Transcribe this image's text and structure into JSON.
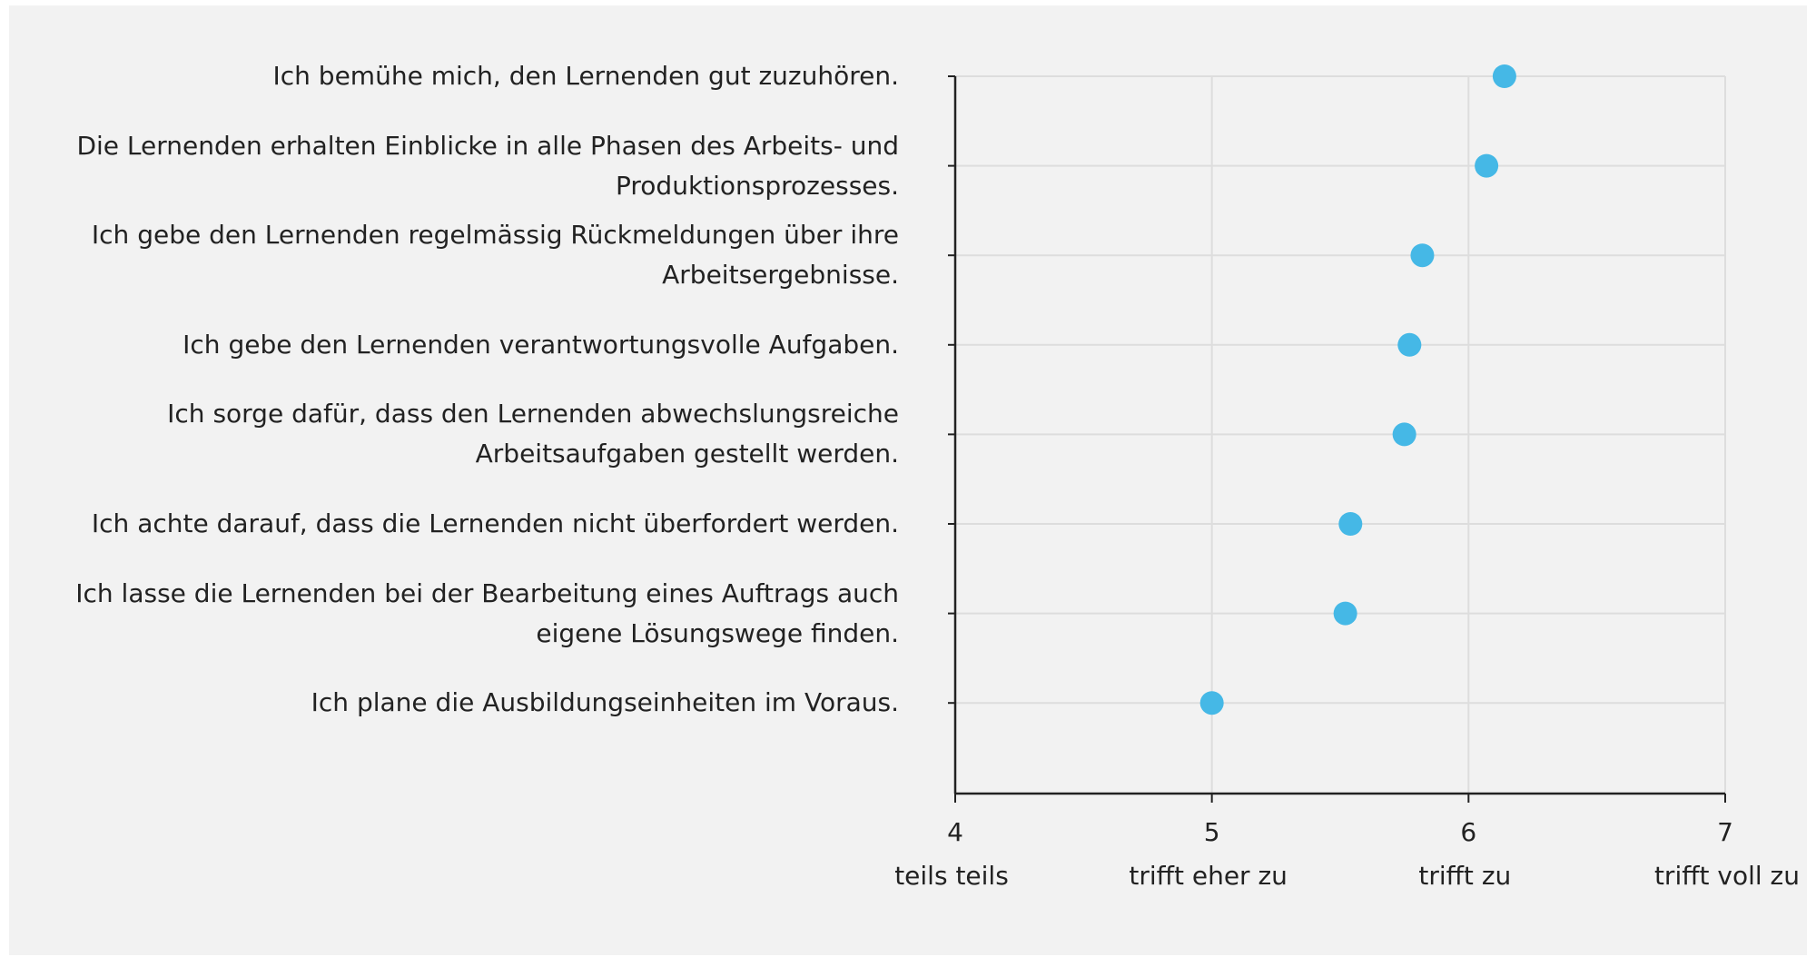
{
  "chart_data": {
    "type": "dot",
    "categories": [
      "Ich bemühe mich, den Lernenden gut zuzuhören.",
      "Die Lernenden erhalten Einblicke in alle Phasen des Arbeits- und\nProduktionsprozesses.",
      "Ich gebe den Lernenden regelmässig Rückmeldungen über ihre\nArbeitsergebnisse.",
      "Ich gebe den Lernenden verantwortungsvolle Aufgaben.",
      "Ich sorge dafür, dass den Lernenden abwechslungsreiche\nArbeitsaufgaben gestellt werden.",
      "Ich achte darauf, dass die Lernenden nicht überfordert werden.",
      "Ich lasse die Lernenden bei der Bearbeitung eines Auftrags auch\neigene Lösungswege finden.",
      "Ich plane die Ausbildungseinheiten im Voraus."
    ],
    "values": [
      6.14,
      6.07,
      5.82,
      5.77,
      5.75,
      5.54,
      5.52,
      5.0
    ],
    "color": "#45b8e6",
    "xlim": [
      4,
      7
    ],
    "xticks": [
      4,
      5,
      6,
      7
    ],
    "xtick_sublabels": [
      "teils teils",
      "trifft eher zu",
      "trifft zu",
      "trifft voll zu"
    ],
    "grid": true
  }
}
